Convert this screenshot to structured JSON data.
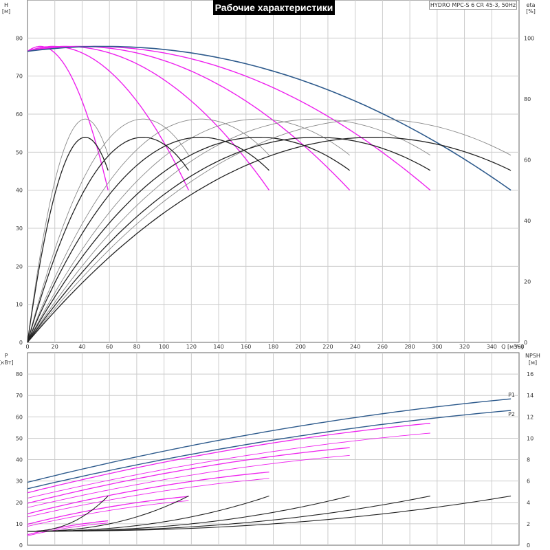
{
  "header": {
    "title": "Рабочие характеристики",
    "model": "HYDRO MPC-S 6 CR 45-3, 50Hz"
  },
  "colors": {
    "single_pump": "#ee22ee",
    "all_pumps": "#2d5a8c",
    "efficiency": "#222222",
    "efficiency_p2": "#888888",
    "npsh": "#222222",
    "grid": "#cccccc"
  },
  "chart_data": [
    {
      "type": "line",
      "panel": "upper",
      "x_axis": {
        "label": "Q [м³/ч]",
        "range": [
          0,
          360
        ],
        "ticks": [
          0,
          20,
          40,
          60,
          80,
          100,
          120,
          140,
          160,
          180,
          200,
          220,
          240,
          260,
          280,
          300,
          320,
          340,
          360
        ]
      },
      "y_axis_left": {
        "label": "H",
        "unit": "[м]",
        "range": [
          0,
          80
        ],
        "ticks": [
          0,
          10,
          20,
          30,
          40,
          50,
          60,
          70,
          80
        ]
      },
      "y_axis_right": {
        "label": "eta",
        "unit": "[%]",
        "range": [
          0,
          100
        ],
        "ticks": [
          0,
          20,
          40,
          60,
          80,
          100
        ]
      },
      "head_curves": [
        {
          "pumps": 1,
          "qmax": 59,
          "h_shutoff": 76.5,
          "h_peak": 77.8,
          "h_end": 40
        },
        {
          "pumps": 2,
          "qmax": 118,
          "h_shutoff": 76.5,
          "h_peak": 77.8,
          "h_end": 40
        },
        {
          "pumps": 3,
          "qmax": 177,
          "h_shutoff": 76.5,
          "h_peak": 77.8,
          "h_end": 40
        },
        {
          "pumps": 4,
          "qmax": 236,
          "h_shutoff": 76.5,
          "h_peak": 77.8,
          "h_end": 40
        },
        {
          "pumps": 5,
          "qmax": 295,
          "h_shutoff": 76.5,
          "h_peak": 77.8,
          "h_end": 40
        },
        {
          "pumps": 6,
          "qmax": 354,
          "h_shutoff": 76.5,
          "h_peak": 77.8,
          "h_end": 40
        }
      ],
      "efficiency_curves": [
        {
          "pumps": 1,
          "qmax": 59,
          "eta_max": 67.5,
          "eta_end": 56.5
        },
        {
          "pumps": 2,
          "qmax": 118,
          "eta_max": 67.5,
          "eta_end": 56.5
        },
        {
          "pumps": 3,
          "qmax": 177,
          "eta_max": 67.5,
          "eta_end": 56.5
        },
        {
          "pumps": 4,
          "qmax": 236,
          "eta_max": 67.5,
          "eta_end": 56.5
        },
        {
          "pumps": 5,
          "qmax": 295,
          "eta_max": 67.5,
          "eta_end": 56.5
        },
        {
          "pumps": 6,
          "qmax": 354,
          "eta_max": 67.5,
          "eta_end": 56.5
        }
      ],
      "efficiency_p2_curves": [
        {
          "pumps": 1,
          "qmax": 59,
          "eta_max": 73.5,
          "eta_end": 61.5
        },
        {
          "pumps": 2,
          "qmax": 118,
          "eta_max": 73.5,
          "eta_end": 61.5
        },
        {
          "pumps": 3,
          "qmax": 177,
          "eta_max": 73.5,
          "eta_end": 61.5
        },
        {
          "pumps": 4,
          "qmax": 236,
          "eta_max": 73.5,
          "eta_end": 61.5
        },
        {
          "pumps": 5,
          "qmax": 295,
          "eta_max": 73.5,
          "eta_end": 61.5
        },
        {
          "pumps": 6,
          "qmax": 354,
          "eta_max": 73.5,
          "eta_end": 61.5
        }
      ]
    },
    {
      "type": "line",
      "panel": "lower",
      "x_axis": {
        "range": [
          0,
          360
        ]
      },
      "y_axis_left": {
        "label": "P",
        "unit": "[кВт]",
        "range": [
          0,
          90
        ],
        "ticks": [
          0,
          10,
          20,
          30,
          40,
          50,
          60,
          70,
          80
        ]
      },
      "y_axis_right": {
        "label": "NPSH",
        "unit": "[м]",
        "range": [
          0,
          18
        ],
        "ticks": [
          0,
          2,
          4,
          6,
          8,
          10,
          12,
          14,
          16
        ]
      },
      "power_labels": [
        "P1",
        "P2"
      ],
      "power_p1_curves": [
        {
          "pumps": 1,
          "qmax": 59,
          "p_start": 4.9,
          "p_end": 11.4
        },
        {
          "pumps": 2,
          "qmax": 118,
          "p_start": 9.8,
          "p_end": 22.8
        },
        {
          "pumps": 3,
          "qmax": 177,
          "p_start": 14.7,
          "p_end": 34.2
        },
        {
          "pumps": 4,
          "qmax": 236,
          "p_start": 19.6,
          "p_end": 45.6
        },
        {
          "pumps": 5,
          "qmax": 295,
          "p_start": 24.5,
          "p_end": 57.0
        },
        {
          "pumps": 6,
          "qmax": 354,
          "p_start": 29.4,
          "p_end": 68.4
        }
      ],
      "power_p2_curves": [
        {
          "pumps": 1,
          "qmax": 59,
          "p_start": 4.4,
          "p_end": 10.4
        },
        {
          "pumps": 2,
          "qmax": 118,
          "p_start": 8.8,
          "p_end": 20.8
        },
        {
          "pumps": 3,
          "qmax": 177,
          "p_start": 13.2,
          "p_end": 31.2
        },
        {
          "pumps": 4,
          "qmax": 236,
          "p_start": 17.6,
          "p_end": 42.0
        },
        {
          "pumps": 5,
          "qmax": 295,
          "p_start": 22.0,
          "p_end": 52.4
        },
        {
          "pumps": 6,
          "qmax": 354,
          "p_start": 26.4,
          "p_end": 63.0
        }
      ],
      "npsh_curves": [
        {
          "pumps": 1,
          "qmax": 59,
          "npsh_start": 1.3,
          "npsh_end": 4.6
        },
        {
          "pumps": 2,
          "qmax": 118,
          "npsh_start": 1.3,
          "npsh_end": 4.6
        },
        {
          "pumps": 3,
          "qmax": 177,
          "npsh_start": 1.3,
          "npsh_end": 4.6
        },
        {
          "pumps": 4,
          "qmax": 236,
          "npsh_start": 1.3,
          "npsh_end": 4.6
        },
        {
          "pumps": 5,
          "qmax": 295,
          "npsh_start": 1.3,
          "npsh_end": 4.6
        },
        {
          "pumps": 6,
          "qmax": 354,
          "npsh_start": 1.3,
          "npsh_end": 4.6
        }
      ]
    }
  ]
}
